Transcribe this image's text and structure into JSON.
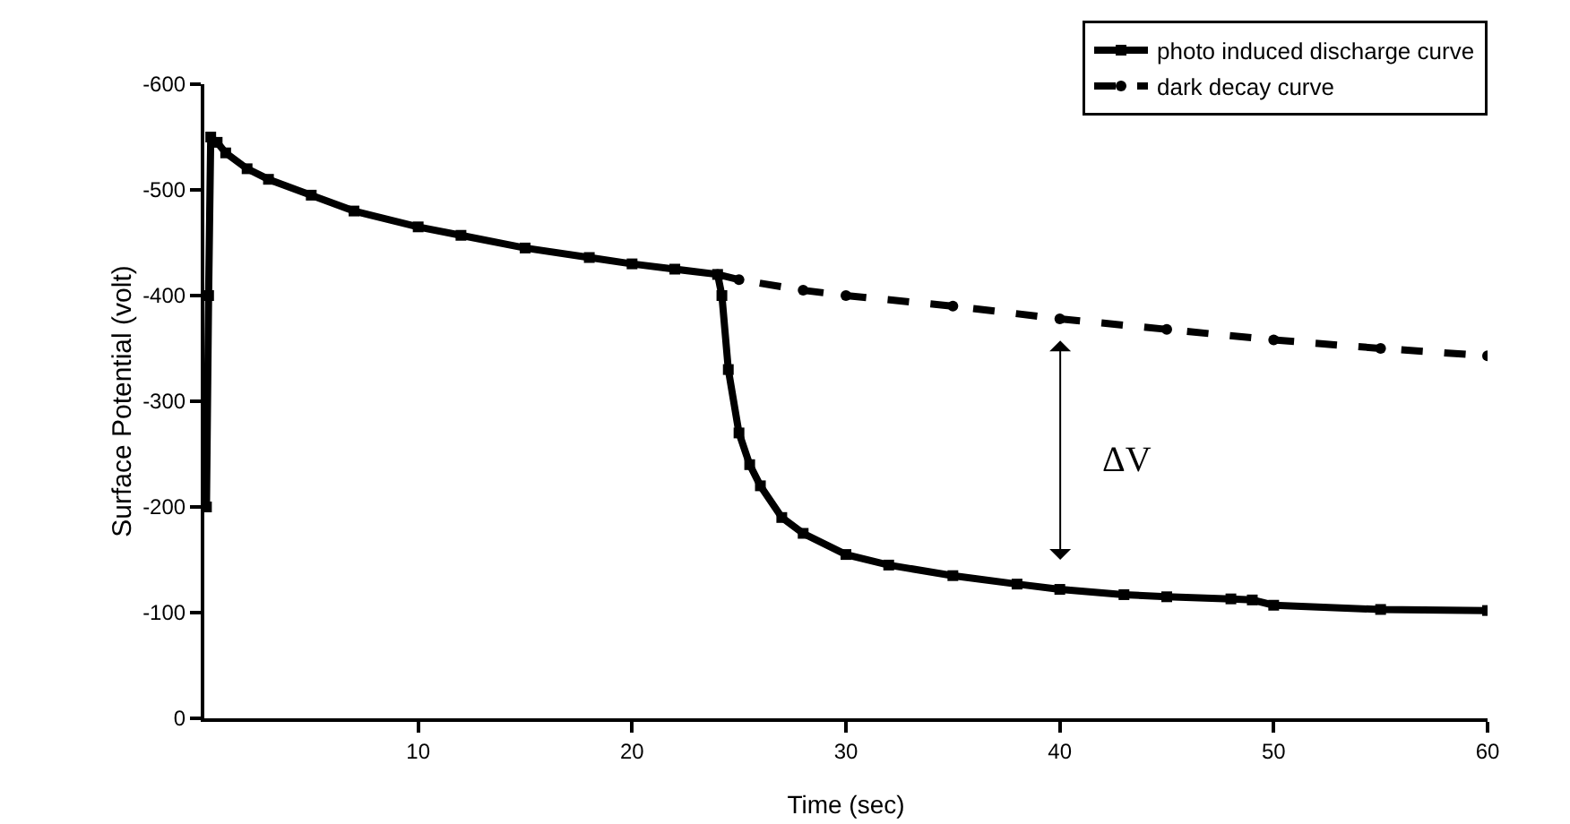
{
  "chart_data": {
    "type": "line",
    "xlabel": "Time (sec)",
    "ylabel": "Surface Potential (volt)",
    "xlim": [
      0,
      60
    ],
    "xticks": [
      10,
      20,
      30,
      40,
      50,
      60
    ],
    "ylim": [
      0,
      -600
    ],
    "yticks": [
      0,
      -100,
      -200,
      -300,
      -400,
      -500,
      -600
    ],
    "grid": false,
    "legend": "top right",
    "series": [
      {
        "name": "photo induced discharge curve",
        "color": "#000000",
        "marker": "square",
        "line_style": "solid",
        "x": [
          0.1,
          0.2,
          0.3,
          0.6,
          1,
          2,
          3,
          5,
          7,
          10,
          12,
          15,
          18,
          20,
          22,
          24,
          24.2,
          24.5,
          25,
          25.5,
          26,
          27,
          28,
          30,
          32,
          35,
          38,
          40,
          43,
          45,
          48,
          49,
          50,
          55,
          60
        ],
        "values": [
          -200,
          -400,
          -550,
          -545,
          -535,
          -520,
          -510,
          -495,
          -480,
          -465,
          -457,
          -445,
          -436,
          -430,
          -425,
          -420,
          -400,
          -330,
          -270,
          -240,
          -220,
          -190,
          -175,
          -155,
          -145,
          -135,
          -127,
          -122,
          -117,
          -115,
          -113,
          -112,
          -107,
          -103,
          -102
        ]
      },
      {
        "name": "dark decay curve",
        "color": "#000000",
        "marker": "circle",
        "line_style": "dashed",
        "x": [
          24,
          25,
          28,
          30,
          35,
          40,
          45,
          50,
          55,
          60
        ],
        "values": [
          -420,
          -415,
          -405,
          -400,
          -390,
          -378,
          -368,
          -358,
          -350,
          -343
        ]
      }
    ],
    "annotations": [
      "ΔV"
    ]
  }
}
